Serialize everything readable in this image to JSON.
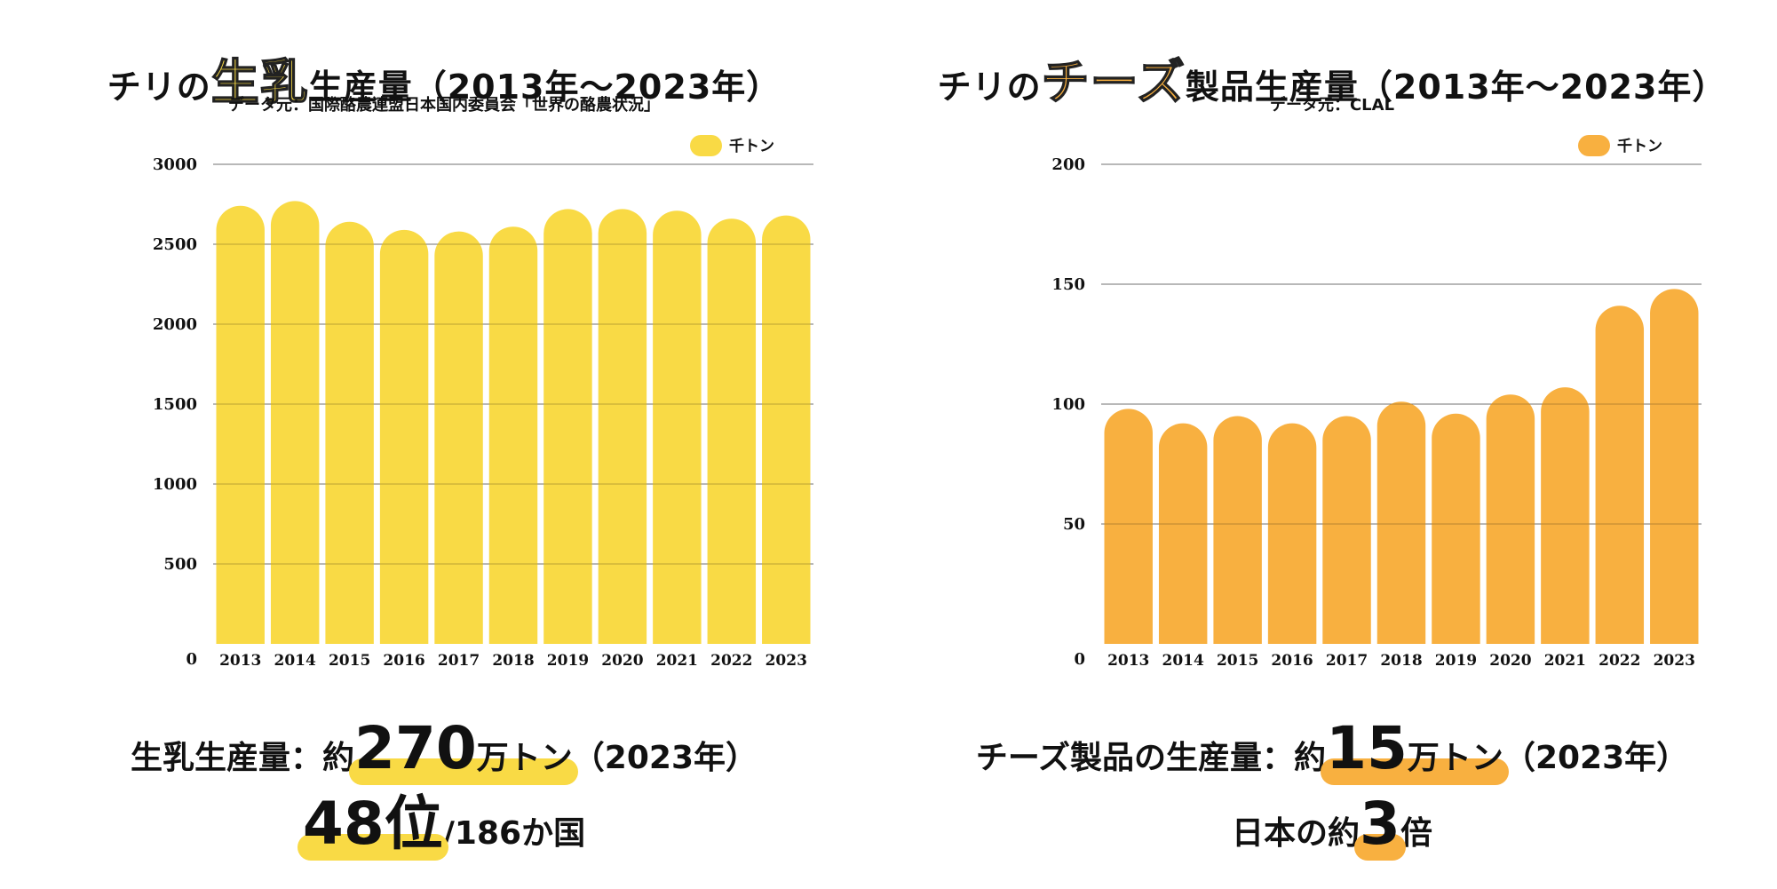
{
  "left": {
    "title_pre": "チリの",
    "title_hl": "生乳",
    "title_post": "生産量（2013年〜2023年）",
    "subtitle": "データ元：国際酪農連盟日本国内委員会「世界の酪農状況」",
    "summary1_pre": "生乳生産量：約",
    "summary1_big": "270",
    "summary1_unit": "万トン",
    "summary1_post": "（2023年）",
    "summary2_big": "48位",
    "summary2_post": "/186か国"
  },
  "right": {
    "title_pre": "チリの",
    "title_hl": "チーズ",
    "title_post": "製品生産量（2013年〜2023年）",
    "subtitle": "データ元：CLAL",
    "summary1_pre": "チーズ製品の生産量：約",
    "summary1_big": "15",
    "summary1_unit": "万トン",
    "summary1_post": "（2023年）",
    "summary2_pre": "日本の約",
    "summary2_big": "3",
    "summary2_post": "倍"
  },
  "colors": {
    "milk": "#F9DA45",
    "cheese": "#F8B040",
    "grid": "#999999"
  },
  "chart_data": [
    {
      "type": "bar",
      "categories": [
        "2013",
        "2014",
        "2015",
        "2016",
        "2017",
        "2018",
        "2019",
        "2020",
        "2021",
        "2022",
        "2023"
      ],
      "series": [
        {
          "name": "千トン",
          "values": [
            2740,
            2770,
            2640,
            2590,
            2580,
            2610,
            2720,
            2720,
            2710,
            2660,
            2680
          ]
        }
      ],
      "ylim": [
        0,
        3000
      ],
      "yticks": [
        "0",
        "500",
        "1000",
        "1500",
        "2000",
        "2500",
        "3000"
      ],
      "grid": true,
      "legend": "top-right"
    },
    {
      "type": "bar",
      "categories": [
        "2013",
        "2014",
        "2015",
        "2016",
        "2017",
        "2018",
        "2019",
        "2020",
        "2021",
        "2022",
        "2023"
      ],
      "series": [
        {
          "name": "千トン",
          "values": [
            98,
            92,
            95,
            92,
            95,
            101,
            96,
            104,
            107,
            141,
            148
          ]
        }
      ],
      "ylim": [
        0,
        200
      ],
      "yticks": [
        "0",
        "50",
        "100",
        "150",
        "200"
      ],
      "grid": true,
      "legend": "top-right"
    }
  ]
}
